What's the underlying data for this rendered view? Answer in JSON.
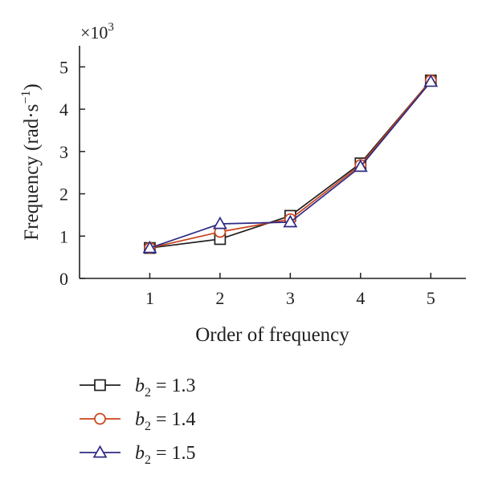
{
  "chart_data": {
    "type": "line",
    "xlabel": "Order of frequency",
    "ylabel": "Frequency (rad·s",
    "ylabel_unit_sup": "−1",
    "ylabel_close": ")",
    "y_multiplier": {
      "prefix": "×10",
      "exponent": "3"
    },
    "x": [
      1,
      2,
      3,
      4,
      5
    ],
    "xlim": [
      0,
      5.5
    ],
    "ylim": [
      0,
      5.5
    ],
    "x_ticks": [
      1,
      2,
      3,
      4,
      5
    ],
    "y_ticks": [
      0,
      1,
      2,
      3,
      4,
      5
    ],
    "grid": false,
    "legend_position": "bottom-left",
    "series": [
      {
        "name": "b2 = 1.3",
        "legend_var": "b",
        "legend_sub": "2",
        "legend_rest": " = 1.3",
        "marker": "square",
        "color": "#231f20",
        "values": [
          0.72,
          0.93,
          1.48,
          2.72,
          4.68
        ]
      },
      {
        "name": "b2 = 1.4",
        "legend_var": "b",
        "legend_sub": "2",
        "legend_rest": " = 1.4",
        "marker": "circle",
        "color": "#c8431b",
        "values": [
          0.72,
          1.1,
          1.4,
          2.68,
          4.68
        ]
      },
      {
        "name": "b2 = 1.5",
        "legend_var": "b",
        "legend_sub": "2",
        "legend_rest": " = 1.5",
        "marker": "triangle",
        "color": "#2e2a85",
        "values": [
          0.72,
          1.29,
          1.33,
          2.64,
          4.65
        ]
      }
    ]
  }
}
